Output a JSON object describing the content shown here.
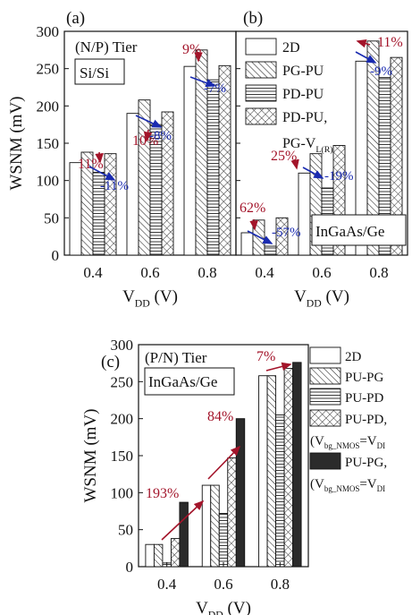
{
  "chart_data": [
    {
      "type": "bar",
      "panel_label": "(a)",
      "tier_label": "(N/P) Tier",
      "material_label": "Si/Si",
      "ylabel": "WSNM (mV)",
      "xlabel_main": "V",
      "xlabel_sub": "DD",
      "xlabel_unit": " (V)",
      "ylim": [
        0,
        300
      ],
      "yticks": [
        "0",
        "50",
        "100",
        "150",
        "200",
        "250",
        "300"
      ],
      "categories": [
        "0.4",
        "0.6",
        "0.8"
      ],
      "series": [
        {
          "name": "2D",
          "pattern": "plain",
          "values": [
            124,
            190,
            253
          ]
        },
        {
          "name": "PG-PU",
          "pattern": "diag",
          "values": [
            138,
            208,
            275
          ]
        },
        {
          "name": "PD-PU",
          "pattern": "horiz",
          "values": [
            111,
            175,
            235
          ]
        },
        {
          "name": "PD-PU, PG-V",
          "pattern": "cross",
          "values": [
            136,
            192,
            254
          ]
        }
      ],
      "red_annotations": [
        "11%",
        "10%",
        "9%"
      ],
      "blue_annotations": [
        "-11%",
        "-8%",
        "-7%"
      ]
    },
    {
      "type": "bar",
      "panel_label": "(b)",
      "material_label": "InGaAs/Ge",
      "xlabel_main": "V",
      "xlabel_sub": "DD",
      "xlabel_unit": " (V)",
      "ylim": [
        0,
        300
      ],
      "categories": [
        "0.4",
        "0.6",
        "0.8"
      ],
      "series": [
        {
          "name": "2D",
          "pattern": "plain",
          "values": [
            30,
            110,
            260
          ]
        },
        {
          "name": "PG-PU",
          "pattern": "diag",
          "values": [
            47,
            136,
            287
          ]
        },
        {
          "name": "PD-PU",
          "pattern": "horiz",
          "values": [
            12,
            90,
            238
          ]
        },
        {
          "name": "PD-PU, PG-V",
          "pattern": "cross",
          "values": [
            50,
            147,
            265
          ]
        }
      ],
      "red_annotations": [
        "62%",
        "25%",
        "11%"
      ],
      "blue_annotations": [
        "-57%",
        "-19%",
        "-9%"
      ],
      "legend": {
        "entries": [
          "2D",
          "PG-PU",
          "PD-PU",
          "PD-PU,"
        ],
        "last_line_main": "PG-V",
        "last_line_sub": "L(R)"
      }
    },
    {
      "type": "bar",
      "panel_label": "(c)",
      "tier_label": "(P/N) Tier",
      "material_label": "InGaAs/Ge",
      "ylabel": "WSNM (mV)",
      "xlabel_main": "V",
      "xlabel_sub": "DD",
      "xlabel_unit": " (V)",
      "ylim": [
        0,
        300
      ],
      "yticks": [
        "0",
        "50",
        "100",
        "150",
        "200",
        "250",
        "300"
      ],
      "categories": [
        "0.4",
        "0.6",
        "0.8"
      ],
      "series": [
        {
          "name": "2D",
          "pattern": "plain",
          "values": [
            30,
            110,
            258
          ]
        },
        {
          "name": "PU-PG",
          "pattern": "diag",
          "values": [
            30,
            110,
            258
          ]
        },
        {
          "name": "PU-PD",
          "pattern": "horiz",
          "values": [
            5,
            72,
            205
          ]
        },
        {
          "name": "PU-PD, (V",
          "pattern": "cross",
          "values": [
            38,
            147,
            268
          ]
        },
        {
          "name": "PU-PG, (V",
          "pattern": "dark",
          "values": [
            87,
            200,
            276
          ]
        }
      ],
      "red_annotations": [
        "193%",
        "84%",
        "7%"
      ],
      "legend": {
        "entries": [
          "2D",
          "PU-PG",
          "PU-PD",
          "PU-PD,",
          "PU-PG,"
        ],
        "paren_main": "(V",
        "paren_sub": "bg_NMOS",
        "paren_tail": "=V",
        "paren_tail_sub": "DI"
      }
    }
  ]
}
